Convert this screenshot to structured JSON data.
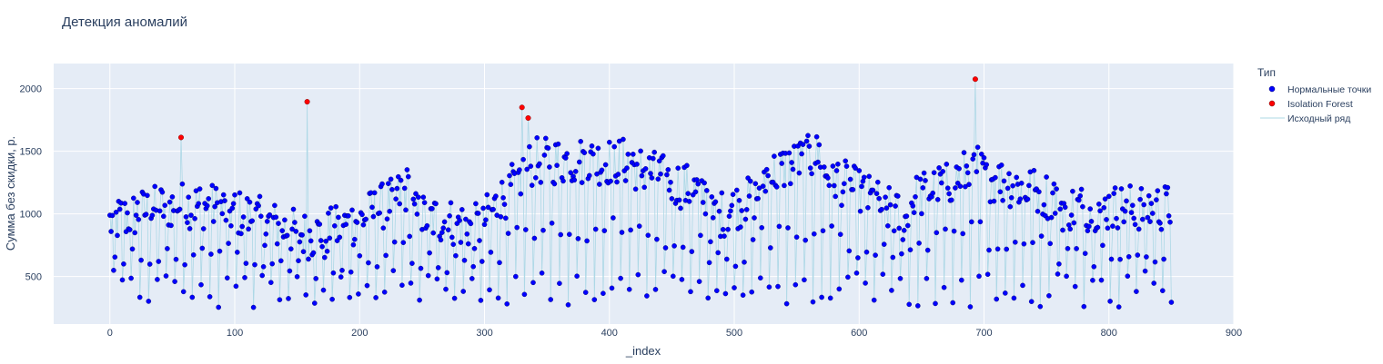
{
  "chart_data": {
    "type": "scatter",
    "title": "Детекция аномалий",
    "xlabel": "_index",
    "ylabel": "Сумма без скидки, р.",
    "xlim": [
      -45,
      900
    ],
    "ylim": [
      120,
      2200
    ],
    "x_ticks": [
      0,
      100,
      200,
      300,
      400,
      500,
      600,
      700,
      800,
      900
    ],
    "y_ticks": [
      500,
      1000,
      1500,
      2000
    ],
    "grid": true,
    "legend": {
      "title": "Тип",
      "placement": "right",
      "entries": [
        "Нормальные точки",
        "Isolation Forest",
        "Исходный ряд"
      ]
    },
    "colors": {
      "normal": "#0000ff",
      "anomaly": "#ff0000",
      "line": "#add8e6",
      "plot_bg": "#e5ecf6",
      "grid": "#ffffff",
      "text": "#2a3f5f"
    },
    "n_points": 851,
    "normal_points_summary": "851 daily values oscillating roughly between 180 and 1750 (approximated series)",
    "anomalies": [
      {
        "x": 57,
        "y": 1610
      },
      {
        "x": 158,
        "y": 1895
      },
      {
        "x": 330,
        "y": 1850
      },
      {
        "x": 335,
        "y": 1765
      },
      {
        "x": 693,
        "y": 2075
      }
    ],
    "series": [
      {
        "name": "Нормальные точки",
        "values": "generated in script as approximation (851 points)"
      },
      {
        "name": "Isolation Forest",
        "values": "see anomalies"
      },
      {
        "name": "Исходный ряд",
        "values": "line through all points"
      }
    ]
  }
}
